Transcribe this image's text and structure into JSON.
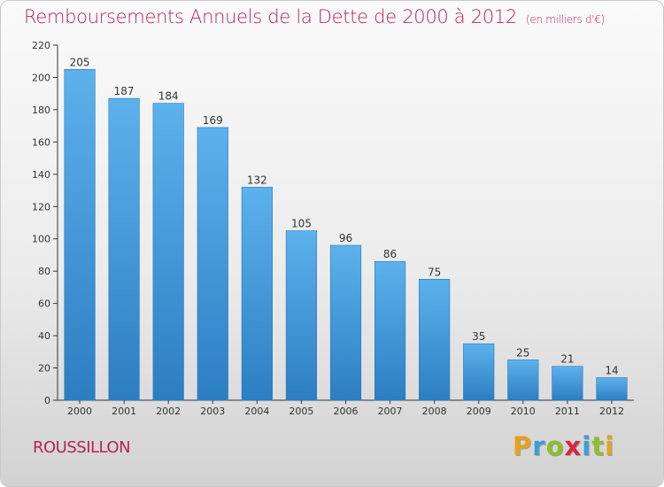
{
  "chart_data": {
    "type": "bar",
    "title": "Remboursements Annuels de la Dette de 2000 à 2012",
    "unit_note": "(en milliers d'€)",
    "categories": [
      "2000",
      "2001",
      "2002",
      "2003",
      "2004",
      "2005",
      "2006",
      "2007",
      "2008",
      "2009",
      "2010",
      "2011",
      "2012"
    ],
    "values": [
      205,
      187,
      184,
      169,
      132,
      105,
      96,
      86,
      75,
      35,
      25,
      21,
      14
    ],
    "yticks": [
      0,
      20,
      40,
      60,
      80,
      100,
      120,
      140,
      160,
      180,
      200,
      220
    ],
    "ylim": [
      0,
      220
    ],
    "xlabel": "",
    "ylabel": "",
    "grid": false
  },
  "place_name": "ROUSSILLON",
  "logo": {
    "text": "Proxiti",
    "letters": [
      {
        "ch": "P",
        "color": "#e8a020"
      },
      {
        "ch": "r",
        "color": "#3aa0d8"
      },
      {
        "ch": "o",
        "color": "#8cbf2e"
      },
      {
        "ch": "x",
        "color": "#d8283c"
      },
      {
        "ch": "i",
        "color": "#3aa0d8"
      },
      {
        "ch": "t",
        "color": "#8cbf2e"
      },
      {
        "ch": "i",
        "color": "#e8a020"
      }
    ]
  },
  "colors": {
    "title": "#b5245a",
    "bar_top": "#5cb2ec",
    "bar_bottom": "#2c7ec2",
    "axis": "#333333"
  }
}
